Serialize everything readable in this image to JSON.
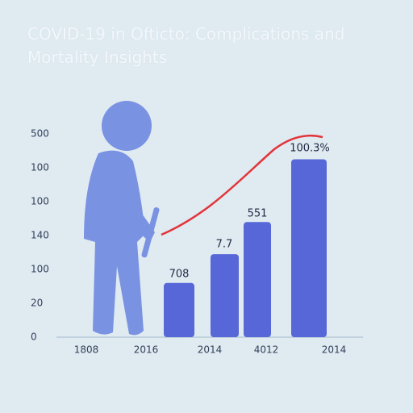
{
  "chart_data": {
    "type": "bar",
    "title": "COVID-19 in Ofticto: Complications and Mortality Insights",
    "categories": [
      "1808",
      "2016",
      "2014",
      "4012",
      "2014"
    ],
    "values": [
      null,
      1.6,
      2.45,
      3.4,
      5.25
    ],
    "color": "#5767d8",
    "annotations": [
      "708",
      "7.7",
      "551",
      "100.3%"
    ],
    "ylim": [
      0,
      6
    ],
    "yticks": [
      {
        "value": 0,
        "label": "0"
      },
      {
        "value": 1,
        "label": "20"
      },
      {
        "value": 2,
        "label": "100"
      },
      {
        "value": 3,
        "label": "140"
      },
      {
        "value": 4,
        "label": "100"
      },
      {
        "value": 5,
        "label": "100"
      },
      {
        "value": 6,
        "label": "500"
      }
    ],
    "grid": false
  }
}
